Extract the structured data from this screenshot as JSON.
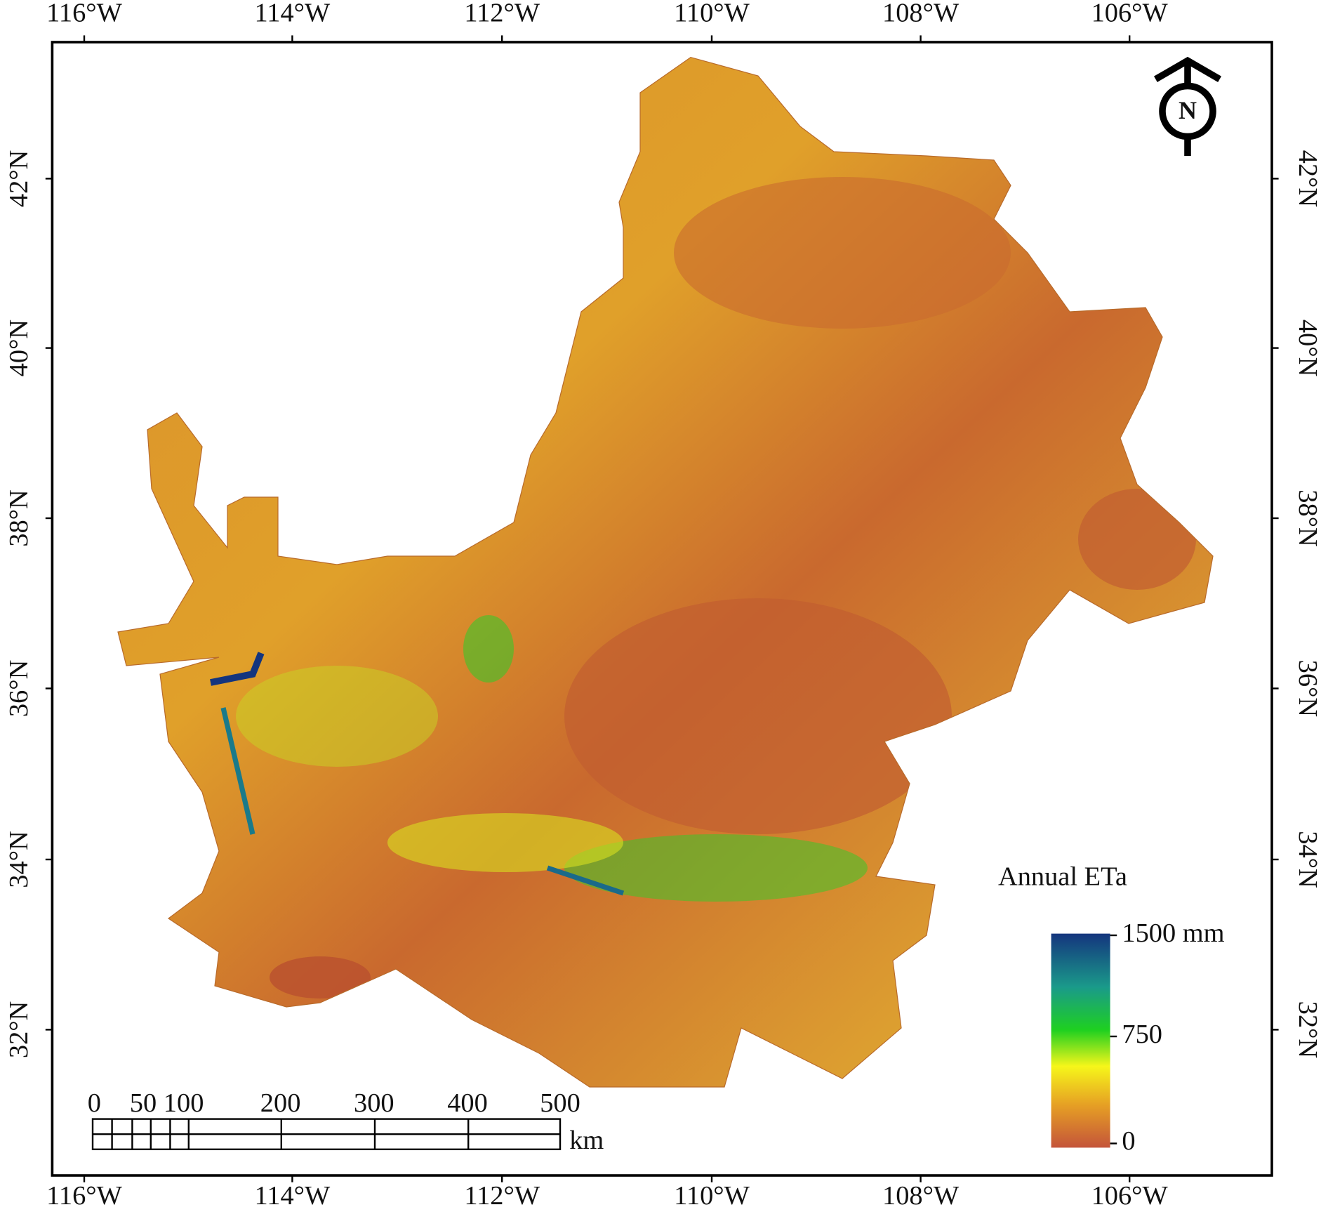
{
  "map": {
    "lon_labels": [
      "116°W",
      "114°W",
      "112°W",
      "110°W",
      "108°W",
      "106°W"
    ],
    "lat_labels": [
      "42°N",
      "40°N",
      "38°N",
      "36°N",
      "34°N",
      "32°N"
    ],
    "north_arrow": "N",
    "legend": {
      "title": "Annual ETa",
      "labels": [
        "1500 mm",
        "750",
        "0"
      ]
    },
    "scale_bar": {
      "labels": [
        "0",
        "50",
        "100",
        "200",
        "300",
        "400",
        "500"
      ],
      "unit": "km"
    }
  }
}
